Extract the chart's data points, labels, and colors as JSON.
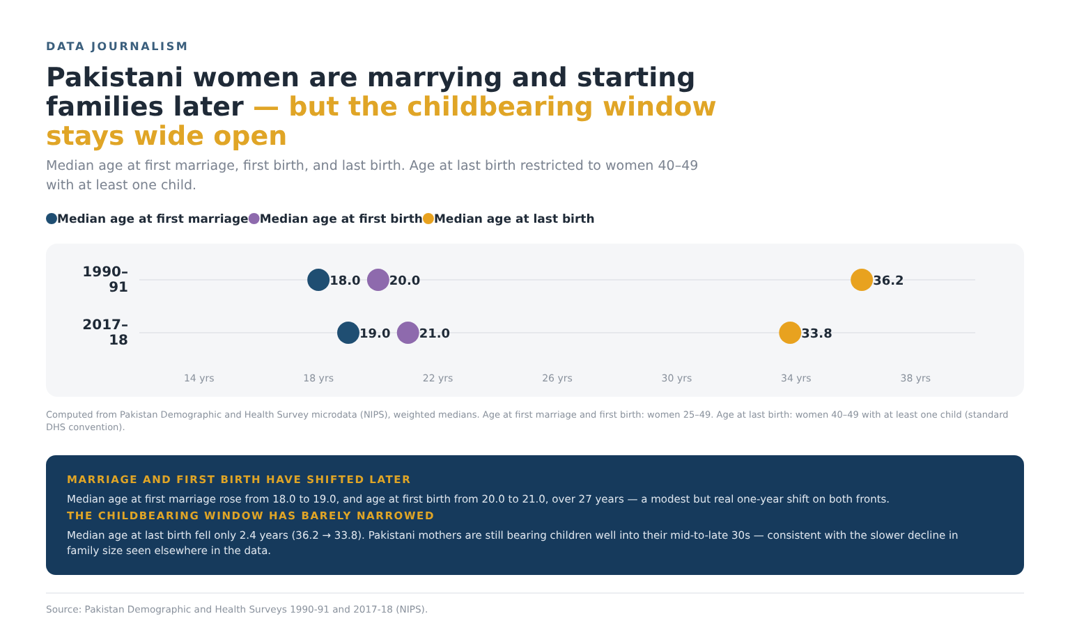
{
  "chart_data": {
    "type": "scatter",
    "orientation": "horizontal",
    "title": "Pakistani women are marrying and starting families later — but the childbearing window stays wide open",
    "subtitle": "Median age at first marriage, first birth, and last birth. Age at last birth restricted to women 40–49 with at least one child.",
    "categories": [
      "1990–91",
      "2017–18"
    ],
    "series": [
      {
        "name": "Median age at first marriage",
        "color": "#1f4e72",
        "values": [
          18.0,
          19.0
        ],
        "value_labels": [
          "18.0",
          "19.0"
        ]
      },
      {
        "name": "Median age at first birth",
        "color": "#8e6aad",
        "values": [
          20.0,
          21.0
        ],
        "value_labels": [
          "20.0",
          "21.0"
        ]
      },
      {
        "name": "Median age at last birth",
        "color": "#e8a21f",
        "values": [
          36.2,
          33.8
        ],
        "value_labels": [
          "36.2",
          "33.8"
        ]
      }
    ],
    "xlim": [
      12,
      40
    ],
    "xticks": [
      {
        "value": 14,
        "label": "14 yrs"
      },
      {
        "value": 18,
        "label": "18 yrs"
      },
      {
        "value": 22,
        "label": "22 yrs"
      },
      {
        "value": 26,
        "label": "26 yrs"
      },
      {
        "value": 30,
        "label": "30 yrs"
      },
      {
        "value": 34,
        "label": "34 yrs"
      },
      {
        "value": 38,
        "label": "38 yrs"
      }
    ],
    "grid": "y",
    "legend": "top left",
    "marker": "circle",
    "annotations": [
      "DATA JOURNALISM",
      "Computed from Pakistan Demographic and Health Survey microdata (NIPS), weighted medians. Age at first marriage and first birth: women 25–49. Age at last birth: women 40–49 with at least one child (standard DHS convention).",
      "MARRIAGE AND FIRST BIRTH HAVE SHIFTED LATER",
      "Median age at first marriage rose from 18.0 to 19.0, and age at first birth from 20.0 to 21.0, over 27 years — a modest but real one-year shift on both fronts.",
      "THE CHILDBEARING WINDOW HAS BARELY NARROWED",
      "Median age at last birth fell only 2.4 years (36.2 → 33.8). Pakistani mothers are still bearing children well into their mid-to-late 30s — consistent with the slower decline in family size seen elsewhere in the data.",
      "Source: Pakistan Demographic and Health Surveys 1990-91 and 2017-18 (NIPS)."
    ]
  }
}
